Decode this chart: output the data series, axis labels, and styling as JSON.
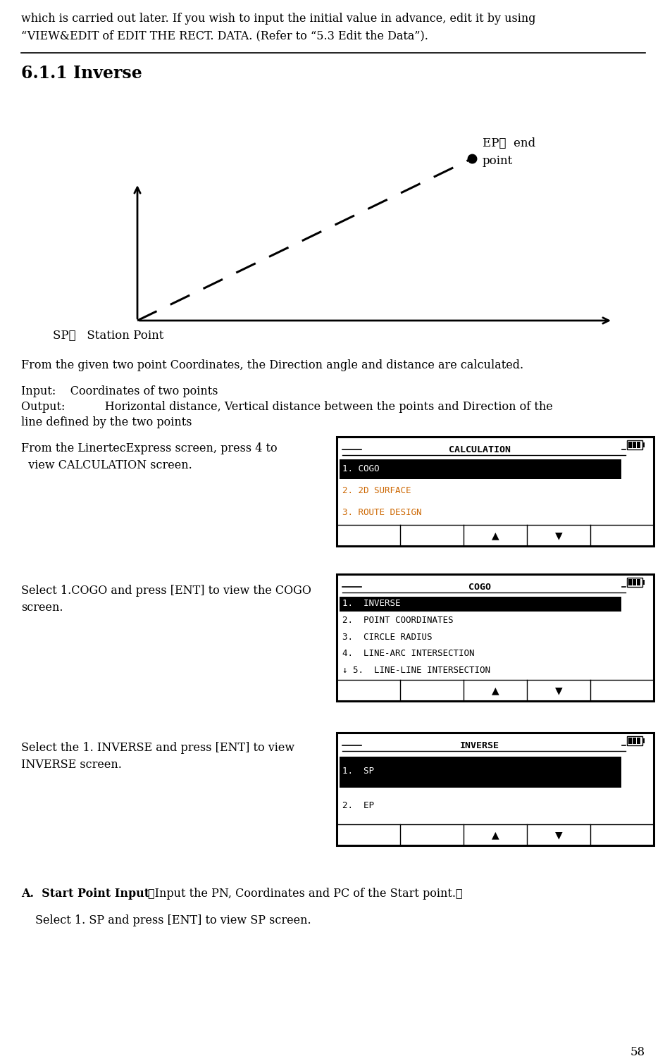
{
  "bg_color": "#ffffff",
  "page_number": "58",
  "intro_line1": "which is carried out later. If you wish to input the initial value in advance, edit it by using",
  "intro_line2": "“VIEW&EDIT of EDIT THE RECT. DATA. (Refer to “5.3 Edit the Data”).",
  "section_title": "6.1.1 Inverse",
  "ep_label1": "EP：  end",
  "ep_label2": "point",
  "sp_label": "SP：   Station Point",
  "desc1": "From the given two point Coordinates, the Direction angle and distance are calculated.",
  "desc_input": "Input:    Coordinates of two points",
  "desc_output1": "Output:           Horizontal distance, Vertical distance between the points and Direction of the",
  "desc_output2": "line defined by the two points",
  "screen1_left1": "From the LinertecExpress screen, press 4 to",
  "screen1_left2": "  view CALCULATION screen.",
  "screen1_title": "CALCULATION",
  "screen1_items": [
    "1. COGO",
    "2. 2D SURFACE",
    "3. ROUTE DESIGN"
  ],
  "screen1_highlight": 0,
  "screen1_normal_color": "#cc6600",
  "screen2_left1": "Select 1.COGO and press [ENT] to view the COGO",
  "screen2_left2": "screen.",
  "screen2_title": "COGO",
  "screen2_items": [
    "1.  INVERSE",
    "2.  POINT COORDINATES",
    "3.  CIRCLE RADIUS",
    "4.  LINE-ARC INTERSECTION",
    "↓ 5.  LINE-LINE INTERSECTION"
  ],
  "screen2_highlight": 0,
  "screen2_normal_color": "#000000",
  "screen3_left1": "Select the 1. INVERSE and press [ENT] to view",
  "screen3_left2": "INVERSE screen.",
  "screen3_title": "INVERSE",
  "screen3_items": [
    "1.  SP",
    "2.  EP"
  ],
  "screen3_highlight": 0,
  "screen3_normal_color": "#000000",
  "section_a_bold": "A.  Start Point Input",
  "section_a_paren": "（Input the PN, Coordinates and PC of the Start point.）",
  "section_a_sub": "Select 1. SP and press [ENT] to view SP screen."
}
